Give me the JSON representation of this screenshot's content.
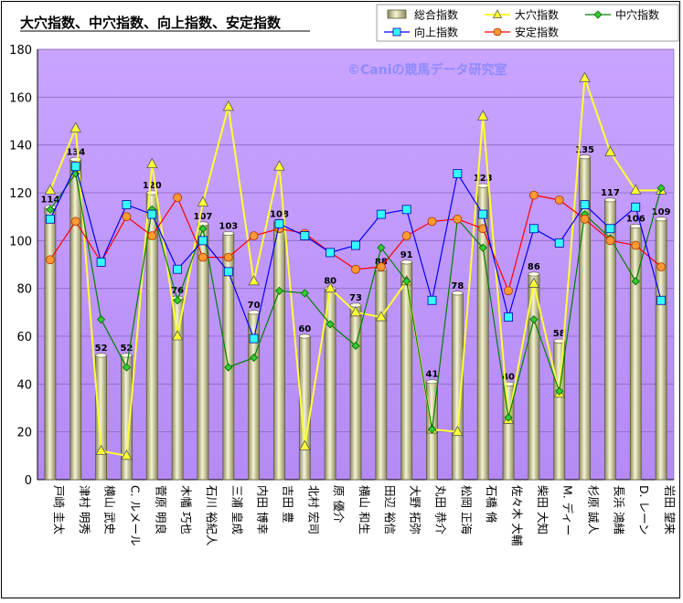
{
  "chart_data": {
    "type": "bar",
    "title": "大穴指数、中穴指数、向上指数、安定指数",
    "watermark": "©Caniの競馬データ研究室",
    "categories": [
      "戸崎 圭太",
      "津村 明秀",
      "横山 武史",
      "C. ルメール",
      "菅原 明良",
      "木幡 巧也",
      "石川 裕紀人",
      "三浦 皇成",
      "内田 博幸",
      "吉田 豊",
      "北村 宏司",
      "原 優介",
      "横山 和生",
      "田辺 裕信",
      "大野 拓弥",
      "丸田 恭介",
      "松岡 正海",
      "石橋 脩",
      "佐々木 大輔",
      "柴田 大知",
      "M. ディー",
      "杉原 誠人",
      "長浜 鴻緒",
      "D. レーン",
      "岩田 望来"
    ],
    "ylim": [
      0,
      180
    ],
    "yticks": [
      0,
      20,
      40,
      60,
      80,
      100,
      120,
      140,
      160,
      180
    ],
    "grid": true,
    "legend_position": "top-right",
    "series": [
      {
        "name": "総合指数",
        "type": "bar",
        "values": [
          114,
          134,
          52,
          52,
          120,
          76,
          107,
          103,
          70,
          108,
          60,
          80,
          73,
          88,
          91,
          41,
          78,
          123,
          40,
          86,
          58,
          135,
          117,
          106,
          109
        ]
      },
      {
        "name": "大穴指数",
        "type": "line",
        "values": [
          121,
          147,
          12,
          10,
          132,
          60,
          116,
          156,
          83,
          131,
          14,
          80,
          70,
          68,
          83,
          21,
          20,
          152,
          25,
          82,
          36,
          168,
          137,
          121,
          121
        ]
      },
      {
        "name": "中穴指数",
        "type": "line",
        "values": [
          113,
          128,
          67,
          47,
          113,
          75,
          105,
          47,
          51,
          79,
          78,
          65,
          56,
          97,
          83,
          21,
          109,
          97,
          26,
          67,
          37,
          111,
          101,
          83,
          122
        ]
      },
      {
        "name": "向上指数",
        "type": "line",
        "values": [
          109,
          131,
          91,
          115,
          111,
          88,
          100,
          87,
          59,
          107,
          102,
          95,
          98,
          111,
          113,
          75,
          128,
          111,
          68,
          105,
          99,
          115,
          105,
          114,
          75
        ]
      },
      {
        "name": "安定指数",
        "type": "line",
        "values": [
          92,
          108,
          91,
          110,
          102,
          118,
          93,
          93,
          102,
          105,
          103,
          95,
          88,
          89,
          102,
          108,
          109,
          105,
          79,
          119,
          117,
          109,
          100,
          98,
          89
        ]
      }
    ],
    "colors": {
      "plot_bg": "#cc99ff",
      "bar_fill": "#e8e4b0",
      "bar_edge": "#5a5a3a",
      "oana": "#ffff33",
      "chuana": "#008000",
      "kojo": "#0000ff",
      "antei": "#ff0000"
    }
  }
}
